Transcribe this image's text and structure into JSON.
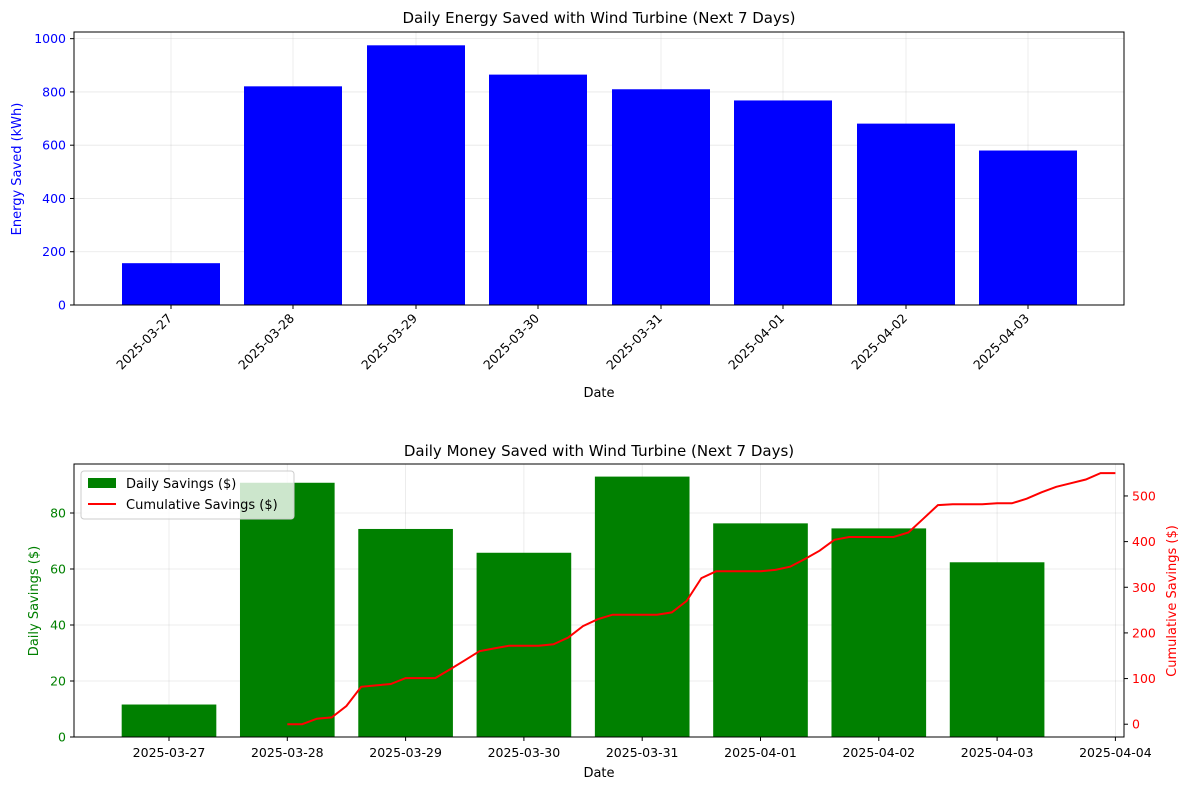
{
  "chart_data": [
    {
      "type": "bar",
      "title": "Daily Energy Saved with Wind Turbine (Next 7 Days)",
      "xlabel": "Date",
      "ylabel": "Energy Saved (kWh)",
      "categories": [
        "2025-03-27",
        "2025-03-28",
        "2025-03-29",
        "2025-03-30",
        "2025-03-31",
        "2025-04-01",
        "2025-04-02",
        "2025-04-03"
      ],
      "values": [
        157,
        821,
        975,
        865,
        810,
        768,
        681,
        580
      ],
      "ylim": [
        0,
        1025
      ],
      "yticks": [
        0,
        200,
        400,
        600,
        800,
        1000
      ],
      "grid": true,
      "colors": {
        "bars": "#0000ff",
        "ylabel": "#0000ff",
        "yticks": "#0000ff"
      }
    },
    {
      "type": "bar",
      "title": "Daily Money Saved with Wind Turbine (Next 7 Days)",
      "xlabel": "Date",
      "ylabel": "Daily Savings ($)",
      "y2label": "Cumulative Savings ($)",
      "categories": [
        "2025-03-27",
        "2025-03-28",
        "2025-03-29",
        "2025-03-30",
        "2025-03-31",
        "2025-04-01",
        "2025-04-02",
        "2025-04-03",
        "2025-04-04"
      ],
      "series": [
        {
          "name": "Daily Savings ($)",
          "type": "bar",
          "axis": "left",
          "x": [
            "2025-03-27",
            "2025-03-28",
            "2025-03-29",
            "2025-03-30",
            "2025-03-31",
            "2025-04-01",
            "2025-04-02",
            "2025-04-03"
          ],
          "values": [
            11.6,
            90.8,
            74.3,
            65.8,
            93.0,
            76.3,
            74.5,
            62.4
          ]
        },
        {
          "name": "Cumulative Savings ($)",
          "type": "line",
          "axis": "right",
          "x": [
            "2025-03-28 00:00",
            "2025-03-28 03:00",
            "2025-03-28 06:00",
            "2025-03-28 09:00",
            "2025-03-28 12:00",
            "2025-03-28 15:00",
            "2025-03-28 18:00",
            "2025-03-28 21:00",
            "2025-03-29 00:00",
            "2025-03-29 03:00",
            "2025-03-29 06:00",
            "2025-03-29 09:00",
            "2025-03-29 12:00",
            "2025-03-29 15:00",
            "2025-03-29 18:00",
            "2025-03-29 21:00",
            "2025-03-30 00:00",
            "2025-03-30 03:00",
            "2025-03-30 06:00",
            "2025-03-30 09:00",
            "2025-03-30 12:00",
            "2025-03-30 15:00",
            "2025-03-30 18:00",
            "2025-03-30 21:00",
            "2025-03-31 00:00",
            "2025-03-31 03:00",
            "2025-03-31 06:00",
            "2025-03-31 09:00",
            "2025-03-31 12:00",
            "2025-03-31 15:00",
            "2025-03-31 18:00",
            "2025-03-31 21:00",
            "2025-04-01 00:00",
            "2025-04-01 03:00",
            "2025-04-01 06:00",
            "2025-04-01 09:00",
            "2025-04-01 12:00",
            "2025-04-01 15:00",
            "2025-04-01 18:00",
            "2025-04-01 21:00",
            "2025-04-02 00:00",
            "2025-04-02 03:00",
            "2025-04-02 06:00",
            "2025-04-02 09:00",
            "2025-04-02 12:00",
            "2025-04-02 15:00",
            "2025-04-02 18:00",
            "2025-04-02 21:00",
            "2025-04-03 00:00",
            "2025-04-03 03:00",
            "2025-04-03 06:00",
            "2025-04-03 09:00",
            "2025-04-03 12:00",
            "2025-04-03 15:00",
            "2025-04-03 18:00",
            "2025-04-03 21:00"
          ],
          "values": [
            0,
            0,
            12,
            15,
            40,
            82,
            85,
            88,
            101,
            101,
            101,
            120,
            140,
            160,
            166,
            172,
            172,
            172,
            175,
            190,
            215,
            230,
            240,
            240,
            240,
            240,
            245,
            270,
            320,
            335,
            335,
            335,
            335,
            338,
            345,
            362,
            380,
            404,
            410,
            410,
            410,
            410,
            420,
            450,
            480,
            482,
            482,
            482,
            484,
            484,
            494,
            508,
            520,
            528,
            536,
            550
          ]
        }
      ],
      "ylim": [
        0,
        97.5
      ],
      "y2lim": [
        -28,
        570
      ],
      "yticks": [
        0,
        20,
        40,
        60,
        80
      ],
      "y2ticks": [
        0,
        100,
        200,
        300,
        400,
        500
      ],
      "legend": "top-left",
      "grid": true,
      "colors": {
        "bars": "#008000",
        "line": "#ff0000",
        "ylabel": "#008000",
        "y2label": "#ff0000"
      }
    }
  ]
}
